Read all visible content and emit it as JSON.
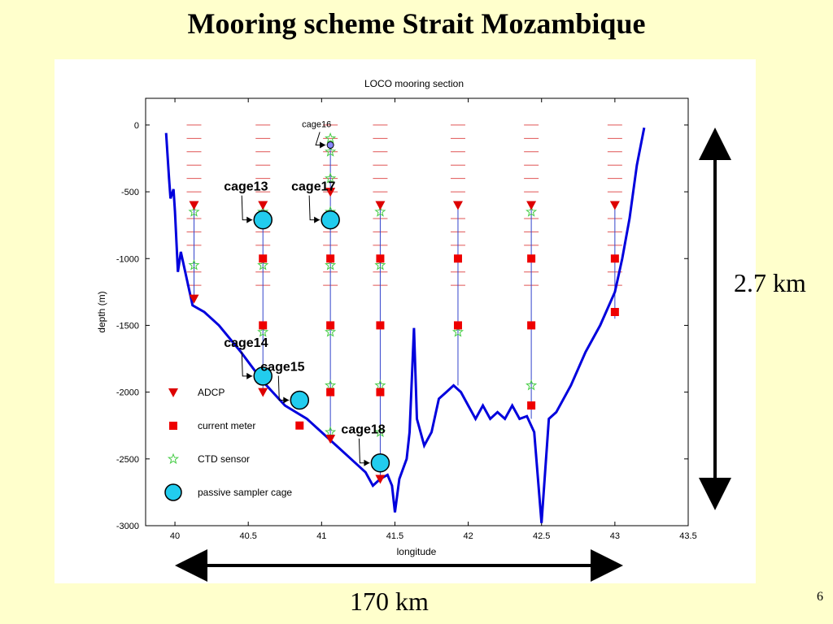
{
  "slide": {
    "title": "Mooring scheme Strait Mozambique",
    "vertical_scale_label": "2.7 km",
    "horizontal_scale_label": "170 km",
    "page_number": "6"
  },
  "colors": {
    "background": "#FFFFCC",
    "bathymetry": "#0000DD",
    "mooring_line": "#3344CC",
    "adcp": "#DD0000",
    "current_meter": "#EE0000",
    "ctd": "#44CC44",
    "cage": "#22CCEE"
  },
  "chart_data": {
    "type": "scatter",
    "title": "LOCO mooring section",
    "xlabel": "longitude",
    "ylabel": "depth (m)",
    "xlim": [
      39.8,
      43.5
    ],
    "ylim": [
      -3000,
      200
    ],
    "x_ticks": [
      40,
      40.5,
      41,
      41.5,
      42,
      42.5,
      43,
      43.5
    ],
    "y_ticks": [
      0,
      -500,
      -1000,
      -1500,
      -2000,
      -2500,
      -3000
    ],
    "legend_position": "bottom-left",
    "legend": [
      {
        "key": "adcp",
        "label": "ADCP"
      },
      {
        "key": "current_meter",
        "label": "current meter"
      },
      {
        "key": "ctd",
        "label": "CTD sensor"
      },
      {
        "key": "cage",
        "label": "passive sampler cage"
      }
    ],
    "bathymetry": [
      [
        39.94,
        -60
      ],
      [
        39.96,
        -400
      ],
      [
        39.97,
        -550
      ],
      [
        39.99,
        -480
      ],
      [
        40.0,
        -650
      ],
      [
        40.02,
        -1100
      ],
      [
        40.04,
        -950
      ],
      [
        40.07,
        -1100
      ],
      [
        40.12,
        -1350
      ],
      [
        40.2,
        -1400
      ],
      [
        40.3,
        -1500
      ],
      [
        40.45,
        -1700
      ],
      [
        40.6,
        -1920
      ],
      [
        40.75,
        -2100
      ],
      [
        40.9,
        -2200
      ],
      [
        41.0,
        -2300
      ],
      [
        41.1,
        -2400
      ],
      [
        41.2,
        -2500
      ],
      [
        41.3,
        -2600
      ],
      [
        41.35,
        -2700
      ],
      [
        41.4,
        -2650
      ],
      [
        41.45,
        -2620
      ],
      [
        41.48,
        -2700
      ],
      [
        41.5,
        -2900
      ],
      [
        41.53,
        -2650
      ],
      [
        41.58,
        -2500
      ],
      [
        41.6,
        -2300
      ],
      [
        41.63,
        -1520
      ],
      [
        41.65,
        -2200
      ],
      [
        41.7,
        -2400
      ],
      [
        41.75,
        -2300
      ],
      [
        41.8,
        -2050
      ],
      [
        41.85,
        -2000
      ],
      [
        41.9,
        -1950
      ],
      [
        41.95,
        -2000
      ],
      [
        42.0,
        -2100
      ],
      [
        42.05,
        -2200
      ],
      [
        42.1,
        -2100
      ],
      [
        42.15,
        -2200
      ],
      [
        42.2,
        -2150
      ],
      [
        42.25,
        -2200
      ],
      [
        42.3,
        -2100
      ],
      [
        42.35,
        -2200
      ],
      [
        42.4,
        -2180
      ],
      [
        42.45,
        -2300
      ],
      [
        42.5,
        -2980
      ],
      [
        42.55,
        -2200
      ],
      [
        42.6,
        -2150
      ],
      [
        42.7,
        -1950
      ],
      [
        42.8,
        -1700
      ],
      [
        42.9,
        -1500
      ],
      [
        43.0,
        -1250
      ],
      [
        43.05,
        -1000
      ],
      [
        43.1,
        -700
      ],
      [
        43.15,
        -300
      ],
      [
        43.2,
        -20
      ]
    ],
    "moorings": [
      {
        "x": 40.13,
        "top": -600,
        "bottom": -1300,
        "adcp": [
          -600,
          -1300
        ],
        "current_meter": [],
        "ctd": [
          -650,
          -1050
        ]
      },
      {
        "x": 40.6,
        "top": -600,
        "bottom": -2000,
        "adcp": [
          -600,
          -2000
        ],
        "current_meter": [
          -1000,
          -1500
        ],
        "ctd": [
          -650,
          -1050,
          -1550
        ]
      },
      {
        "x": 41.06,
        "top": -150,
        "bottom": -2350,
        "adcp": [
          -500,
          -2350
        ],
        "current_meter": [
          -1000,
          -1500,
          -2000
        ],
        "ctd": [
          -100,
          -200,
          -400,
          -650,
          -1050,
          -1550,
          -1950,
          -2300
        ]
      },
      {
        "x": 41.4,
        "top": -600,
        "bottom": -2650,
        "adcp": [
          -600,
          -2650
        ],
        "current_meter": [
          -1000,
          -1500,
          -2000
        ],
        "ctd": [
          -650,
          -1050,
          -1950,
          -2300
        ]
      },
      {
        "x": 41.93,
        "top": -600,
        "bottom": -1950,
        "adcp": [
          -600
        ],
        "current_meter": [
          -1000,
          -1500
        ],
        "ctd": [
          -1550
        ]
      },
      {
        "x": 42.43,
        "top": -600,
        "bottom": -2200,
        "adcp": [
          -600
        ],
        "current_meter": [
          -1000,
          -1500,
          -2100
        ],
        "ctd": [
          -650,
          -1950
        ]
      },
      {
        "x": 43.0,
        "top": -600,
        "bottom": -1450,
        "adcp": [
          -600
        ],
        "current_meter": [
          -1000,
          -1400
        ],
        "ctd": []
      }
    ],
    "extra_current_meters": [
      [
        40.85,
        -2250
      ]
    ],
    "cages": [
      {
        "label": "cage13",
        "x": 40.6,
        "y": -710,
        "size": "large"
      },
      {
        "label": "cage17",
        "x": 41.06,
        "y": -710,
        "size": "large"
      },
      {
        "label": "cage14",
        "x": 40.6,
        "y": -1880,
        "size": "large"
      },
      {
        "label": "cage15",
        "x": 40.85,
        "y": -2060,
        "size": "large"
      },
      {
        "label": "cage18",
        "x": 41.4,
        "y": -2530,
        "size": "large"
      },
      {
        "label": "cage16",
        "x": 41.06,
        "y": -150,
        "size": "small"
      }
    ],
    "dash_columns": [
      40.13,
      40.6,
      41.06,
      41.4,
      41.93,
      42.43,
      43.0
    ],
    "dash_depths": [
      0,
      -100,
      -200,
      -300,
      -400,
      -500,
      -700,
      -800,
      -900,
      -1100,
      -1200
    ]
  }
}
